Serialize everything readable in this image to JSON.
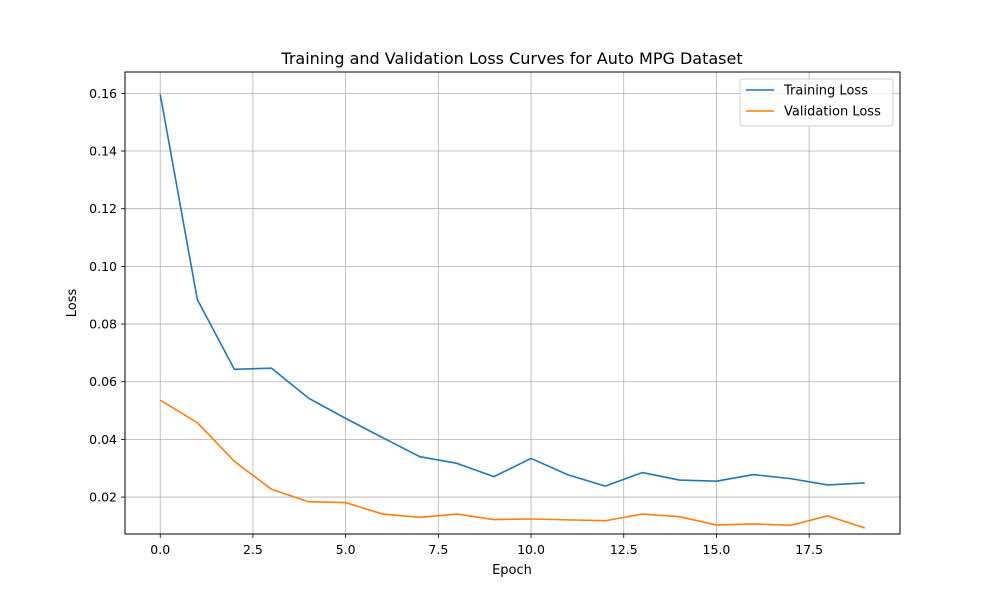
{
  "chart_data": {
    "type": "line",
    "title": "Training and Validation Loss Curves for Auto MPG Dataset",
    "xlabel": "Epoch",
    "ylabel": "Loss",
    "xlim": [
      -0.95,
      19.95
    ],
    "ylim": [
      0.0072,
      0.1674
    ],
    "xticks": [
      0.0,
      2.5,
      5.0,
      7.5,
      10.0,
      12.5,
      15.0,
      17.5
    ],
    "xtick_labels": [
      "0.0",
      "2.5",
      "5.0",
      "7.5",
      "10.0",
      "12.5",
      "15.0",
      "17.5"
    ],
    "yticks": [
      0.02,
      0.04,
      0.06,
      0.08,
      0.1,
      0.12,
      0.14,
      0.16
    ],
    "ytick_labels": [
      "0.02",
      "0.04",
      "0.06",
      "0.08",
      "0.10",
      "0.12",
      "0.14",
      "0.16"
    ],
    "grid": true,
    "legend_position": "top-right",
    "x": [
      0,
      1,
      2,
      3,
      4,
      5,
      6,
      7,
      8,
      9,
      10,
      11,
      12,
      13,
      14,
      15,
      16,
      17,
      18,
      19
    ],
    "series": [
      {
        "name": "Training Loss",
        "color": "#1f77b4",
        "values": [
          0.1597,
          0.0885,
          0.0643,
          0.0647,
          0.0543,
          0.0473,
          0.0406,
          0.034,
          0.0317,
          0.0271,
          0.0334,
          0.0277,
          0.0238,
          0.0285,
          0.0259,
          0.0255,
          0.0278,
          0.0264,
          0.0242,
          0.0249
        ]
      },
      {
        "name": "Validation Loss",
        "color": "#ff7f0e",
        "values": [
          0.0536,
          0.0458,
          0.0324,
          0.0227,
          0.0184,
          0.0181,
          0.0141,
          0.013,
          0.0141,
          0.0122,
          0.0124,
          0.0121,
          0.0118,
          0.0141,
          0.0132,
          0.0103,
          0.0107,
          0.0102,
          0.0135,
          0.0093
        ]
      }
    ]
  }
}
